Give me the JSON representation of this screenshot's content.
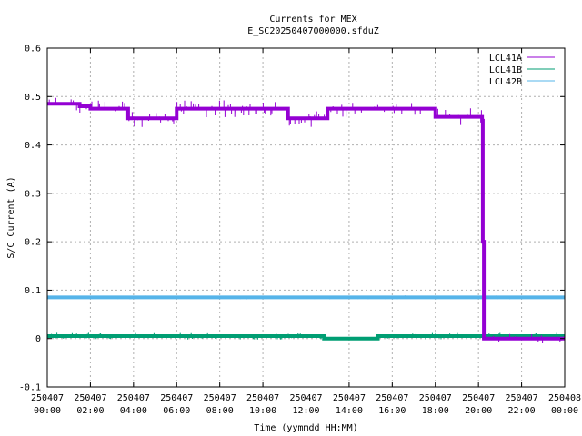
{
  "chart_data": {
    "type": "line",
    "title": "Currents for MEX",
    "subtitle": "E_SC20250407000000.sfduZ",
    "xlabel": "Time (yymmdd HH:MM)",
    "ylabel": "S/C Current (A)",
    "xlim": [
      "250407 00:00",
      "250408 00:00"
    ],
    "ylim": [
      -0.1,
      0.6
    ],
    "yticks": [
      "-0.1",
      "0",
      "0.1",
      "0.2",
      "0.3",
      "0.4",
      "0.5",
      "0.6"
    ],
    "xticks": [
      {
        "date": "250407",
        "time": "00:00"
      },
      {
        "date": "250407",
        "time": "02:00"
      },
      {
        "date": "250407",
        "time": "04:00"
      },
      {
        "date": "250407",
        "time": "06:00"
      },
      {
        "date": "250407",
        "time": "08:00"
      },
      {
        "date": "250407",
        "time": "10:00"
      },
      {
        "date": "250407",
        "time": "12:00"
      },
      {
        "date": "250407",
        "time": "14:00"
      },
      {
        "date": "250407",
        "time": "16:00"
      },
      {
        "date": "250407",
        "time": "18:00"
      },
      {
        "date": "250407",
        "time": "20:00"
      },
      {
        "date": "250407",
        "time": "22:00"
      },
      {
        "date": "250408",
        "time": "00:00"
      }
    ],
    "grid": true,
    "legend_position": "top-right",
    "series": [
      {
        "name": "LCL41A",
        "color": "#9400d3",
        "x": [
          "00:00",
          "00:30",
          "01:00",
          "01:30",
          "02:00",
          "02:30",
          "03:00",
          "03:30",
          "03:45",
          "04:00",
          "05:00",
          "05:50",
          "06:00",
          "08:00",
          "10:00",
          "11:00",
          "11:10",
          "12:00",
          "12:50",
          "13:00",
          "14:00",
          "16:00",
          "17:00",
          "17:50",
          "18:00",
          "19:00",
          "20:00",
          "20:10",
          "20:12",
          "20:15",
          "22:00",
          "24:00"
        ],
        "y": [
          0.485,
          0.485,
          0.485,
          0.48,
          0.475,
          0.475,
          0.475,
          0.475,
          0.455,
          0.455,
          0.455,
          0.455,
          0.475,
          0.475,
          0.475,
          0.475,
          0.455,
          0.455,
          0.455,
          0.475,
          0.475,
          0.475,
          0.475,
          0.475,
          0.458,
          0.458,
          0.458,
          0.45,
          0.2,
          0.0,
          0.0,
          0.0
        ]
      },
      {
        "name": "LCL41B",
        "color": "#009e73",
        "x": [
          "00:00",
          "02:00",
          "04:00",
          "06:00",
          "08:00",
          "10:00",
          "12:00",
          "12:50",
          "14:00",
          "15:20",
          "16:00",
          "18:00",
          "20:00",
          "22:00",
          "24:00"
        ],
        "y": [
          0.005,
          0.005,
          0.005,
          0.005,
          0.005,
          0.005,
          0.005,
          0.0,
          0.0,
          0.005,
          0.005,
          0.005,
          0.005,
          0.005,
          0.005
        ]
      },
      {
        "name": "LCL42B",
        "color": "#56b4e9",
        "x": [
          "00:00",
          "04:00",
          "08:00",
          "12:00",
          "16:00",
          "20:00",
          "24:00"
        ],
        "y": [
          0.085,
          0.085,
          0.085,
          0.085,
          0.085,
          0.085,
          0.085
        ]
      }
    ]
  }
}
